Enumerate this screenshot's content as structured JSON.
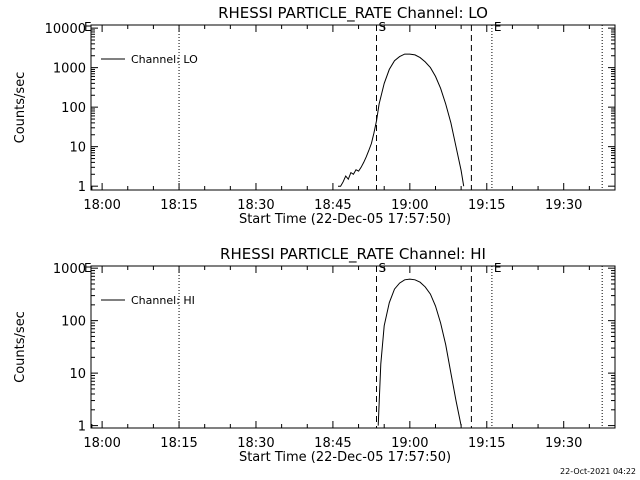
{
  "footer": {
    "timestamp": "22-Oct-2021 04:22"
  },
  "chart_data": [
    {
      "type": "line",
      "title": "RHESSI PARTICLE_RATE Channel: LO",
      "xlabel": "Start Time (22-Dec-05 17:57:50)",
      "ylabel": "Counts/sec",
      "yscale": "log",
      "xlim": [
        "17:57:50",
        "19:40:00"
      ],
      "ylim": [
        0.8,
        12000
      ],
      "x_tick_labels": [
        "18:00",
        "18:15",
        "18:30",
        "18:45",
        "19:00",
        "19:15",
        "19:30"
      ],
      "y_tick_labels": [
        "1",
        "10",
        "100",
        "1000",
        "10000"
      ],
      "y_tick_values": [
        1,
        10,
        100,
        1000,
        10000
      ],
      "legend": {
        "position": "top-left",
        "entries": [
          "Channel: LO"
        ]
      },
      "markers": [
        {
          "label": "S",
          "time": "18:53:30",
          "style": "dashed"
        },
        {
          "label": "E",
          "time": "19:16:00",
          "style": "dotted"
        }
      ],
      "extra_lines": [
        {
          "time": "18:15:00",
          "style": "dotted"
        },
        {
          "time": "19:12:00",
          "style": "dashed"
        },
        {
          "time": "19:37:30",
          "style": "dotted"
        }
      ],
      "corner_label": "E",
      "series": [
        {
          "name": "Channel: LO",
          "x": [
            "18:46:00",
            "18:46:30",
            "18:47:00",
            "18:47:30",
            "18:48:00",
            "18:48:30",
            "18:49:00",
            "18:49:30",
            "18:50:00",
            "18:50:30",
            "18:51:00",
            "18:51:30",
            "18:52:00",
            "18:52:30",
            "18:53:00",
            "18:53:30",
            "18:54:00",
            "18:55:00",
            "18:56:00",
            "18:57:00",
            "18:58:00",
            "18:59:00",
            "19:00:00",
            "19:01:00",
            "19:02:00",
            "19:03:00",
            "19:04:00",
            "19:05:00",
            "19:06:00",
            "19:07:00",
            "19:08:00",
            "19:09:00",
            "19:10:00",
            "19:10:30"
          ],
          "y": [
            1,
            1,
            1.3,
            1.8,
            1.5,
            2.2,
            2.0,
            2.6,
            2.4,
            3.0,
            4.0,
            5.5,
            8,
            12,
            22,
            45,
            120,
            400,
            900,
            1500,
            1900,
            2200,
            2200,
            2100,
            1800,
            1400,
            1000,
            600,
            300,
            120,
            40,
            10,
            2.5,
            1
          ]
        }
      ]
    },
    {
      "type": "line",
      "title": "RHESSI PARTICLE_RATE Channel: HI",
      "xlabel": "Start Time (22-Dec-05 17:57:50)",
      "ylabel": "Counts/sec",
      "yscale": "log",
      "xlim": [
        "17:57:50",
        "19:40:00"
      ],
      "ylim": [
        0.9,
        1100
      ],
      "x_tick_labels": [
        "18:00",
        "18:15",
        "18:30",
        "18:45",
        "19:00",
        "19:15",
        "19:30"
      ],
      "y_tick_labels": [
        "1",
        "10",
        "100",
        "1000"
      ],
      "y_tick_values": [
        1,
        10,
        100,
        1000
      ],
      "legend": {
        "position": "top-left",
        "entries": [
          "Channel: HI"
        ]
      },
      "markers": [
        {
          "label": "S",
          "time": "18:53:30",
          "style": "dashed"
        },
        {
          "label": "E",
          "time": "19:16:00",
          "style": "dotted"
        }
      ],
      "extra_lines": [
        {
          "time": "18:15:00",
          "style": "dotted"
        },
        {
          "time": "19:12:00",
          "style": "dashed"
        },
        {
          "time": "19:37:30",
          "style": "dotted"
        }
      ],
      "corner_label": "E",
      "series": [
        {
          "name": "Channel: HI",
          "x": [
            "18:53:50",
            "18:54:20",
            "18:55:00",
            "18:56:00",
            "18:57:00",
            "18:58:00",
            "18:59:00",
            "19:00:00",
            "19:01:00",
            "19:02:00",
            "19:03:00",
            "19:04:00",
            "19:05:00",
            "19:06:00",
            "19:07:00",
            "19:08:00",
            "19:09:00",
            "19:10:00"
          ],
          "y": [
            1,
            15,
            80,
            220,
            400,
            520,
            600,
            620,
            600,
            540,
            440,
            320,
            190,
            90,
            35,
            10,
            3,
            1
          ]
        }
      ]
    }
  ]
}
